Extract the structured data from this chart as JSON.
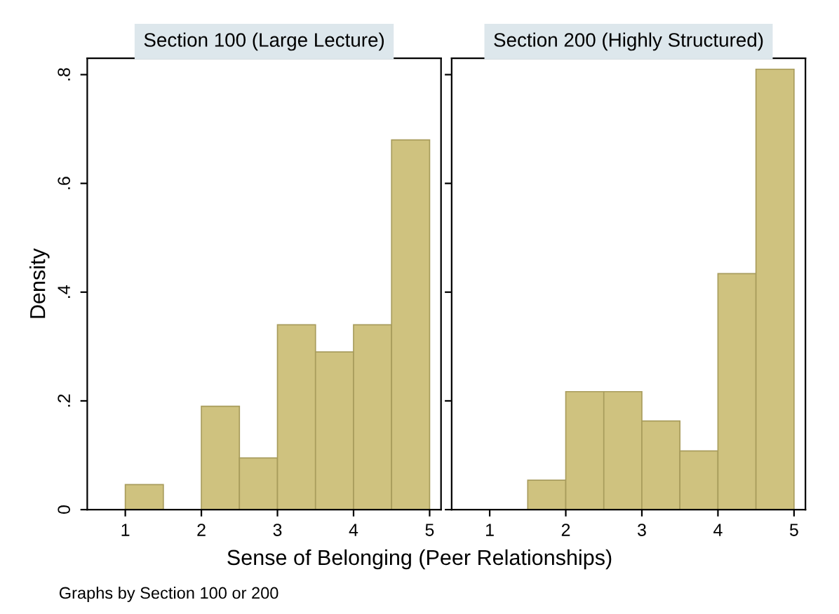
{
  "chart_data": [
    {
      "type": "histogram",
      "title": "Section 100 (Large Lecture)",
      "xlabel": "Sense of Belonging (Peer Relationships)",
      "ylabel": "Density",
      "annotations": [
        "Graphs by Section 100 or 200"
      ],
      "bins": [
        1,
        1.5,
        2,
        2.5,
        3,
        3.5,
        4,
        4.5,
        5
      ],
      "values": [
        0.046,
        0,
        0.19,
        0.095,
        0.34,
        0.29,
        0.34,
        0.68
      ],
      "color": "#cfc27f",
      "xlim": [
        0.5,
        5.15
      ],
      "xticks": [
        1,
        2,
        3,
        4,
        5
      ],
      "ylim": [
        0,
        0.83
      ],
      "yticks": [
        0,
        {
          "value": 0.2,
          "label": ".2"
        },
        {
          "value": 0.4,
          "label": ".4"
        },
        {
          "value": 0.6,
          "label": ".6"
        },
        {
          "value": 0.8,
          "label": ".8"
        }
      ],
      "grid": false
    },
    {
      "type": "histogram",
      "title": "Section 200 (Highly Structured)",
      "bins": [
        1,
        1.5,
        2,
        2.5,
        3,
        3.5,
        4,
        4.5,
        5
      ],
      "values": [
        0,
        0.054,
        0.217,
        0.217,
        0.163,
        0.108,
        0.434,
        0.81
      ],
      "color": "#cfc27f",
      "xlim": [
        0.5,
        5.15
      ],
      "xticks": [
        1,
        2,
        3,
        4,
        5
      ],
      "ylim": [
        0,
        0.83
      ],
      "yticks": [
        {
          "value": 0,
          "label": null
        },
        {
          "value": 0.2,
          "label": null
        },
        {
          "value": 0.4,
          "label": null
        },
        {
          "value": 0.6,
          "label": null
        },
        {
          "value": 0.8,
          "label": null
        }
      ],
      "tick_labels": "x",
      "grid": false
    }
  ]
}
